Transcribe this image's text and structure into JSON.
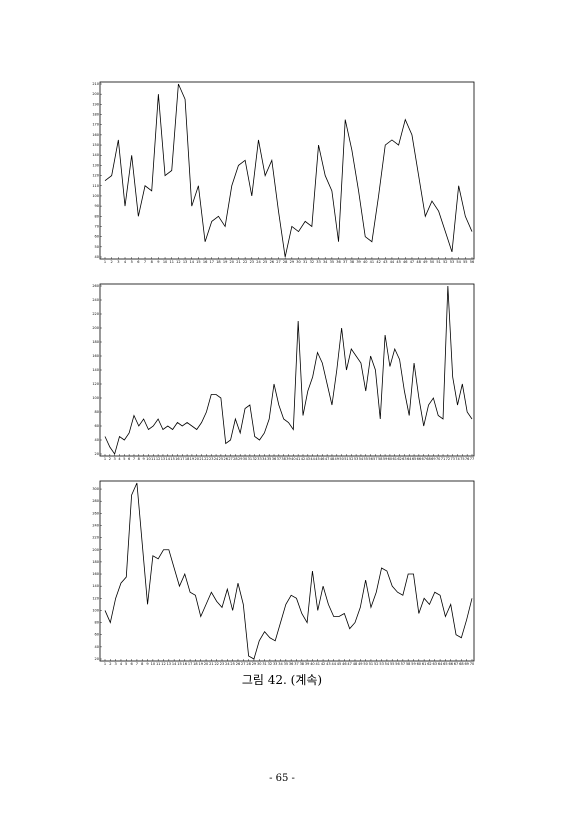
{
  "chart_data": [
    {
      "type": "line",
      "color": "#000000",
      "x": [
        1,
        2,
        3,
        4,
        5,
        6,
        7,
        8,
        9,
        10,
        11,
        12,
        13,
        14,
        15,
        16,
        17,
        18,
        19,
        20,
        21,
        22,
        23,
        24,
        25,
        26,
        27,
        28,
        29,
        30,
        31,
        32,
        33,
        34,
        35,
        36,
        37,
        38,
        39,
        40,
        41,
        42,
        43,
        44,
        45,
        46,
        47,
        48,
        49,
        50,
        51,
        52,
        53,
        54,
        55,
        56
      ],
      "values": [
        115,
        120,
        155,
        90,
        140,
        80,
        110,
        105,
        200,
        120,
        125,
        210,
        195,
        90,
        110,
        55,
        75,
        80,
        70,
        110,
        130,
        135,
        100,
        155,
        120,
        135,
        85,
        40,
        70,
        65,
        75,
        70,
        150,
        120,
        105,
        55,
        175,
        145,
        105,
        60,
        55,
        100,
        150,
        155,
        150,
        175,
        160,
        120,
        80,
        95,
        85,
        65,
        45,
        110,
        80,
        65
      ],
      "xlim": [
        1,
        56
      ],
      "ylim": [
        40,
        210
      ],
      "yticks": [
        40,
        50,
        60,
        70,
        80,
        90,
        100,
        110,
        120,
        130,
        140,
        150,
        160,
        170,
        180,
        190,
        200,
        210
      ]
    },
    {
      "type": "line",
      "color": "#000000",
      "x": [
        1,
        2,
        3,
        4,
        5,
        6,
        7,
        8,
        9,
        10,
        11,
        12,
        13,
        14,
        15,
        16,
        17,
        18,
        19,
        20,
        21,
        22,
        23,
        24,
        25,
        26,
        27,
        28,
        29,
        30,
        31,
        32,
        33,
        34,
        35,
        36,
        37,
        38,
        39,
        40,
        41,
        42,
        43,
        44,
        45,
        46,
        47,
        48,
        49,
        50,
        51,
        52,
        53,
        54,
        55,
        56,
        57,
        58,
        59,
        60,
        61,
        62,
        63,
        64,
        65,
        66,
        67,
        68,
        69,
        70,
        71,
        72,
        73,
        74,
        75,
        76,
        77
      ],
      "values": [
        45,
        30,
        20,
        45,
        40,
        50,
        75,
        60,
        70,
        55,
        60,
        70,
        55,
        60,
        55,
        65,
        60,
        65,
        60,
        55,
        65,
        80,
        105,
        105,
        100,
        35,
        40,
        70,
        50,
        85,
        90,
        45,
        40,
        50,
        70,
        120,
        90,
        70,
        65,
        55,
        210,
        75,
        110,
        130,
        165,
        150,
        120,
        90,
        140,
        200,
        140,
        170,
        160,
        150,
        110,
        160,
        140,
        70,
        190,
        145,
        170,
        155,
        110,
        75,
        150,
        100,
        60,
        90,
        100,
        75,
        70,
        260,
        130,
        90,
        120,
        80,
        70
      ],
      "xlim": [
        1,
        77
      ],
      "ylim": [
        20,
        260
      ],
      "yticks": [
        20,
        40,
        60,
        80,
        100,
        120,
        140,
        160,
        180,
        200,
        220,
        240,
        260
      ]
    },
    {
      "type": "line",
      "color": "#000000",
      "x": [
        1,
        2,
        3,
        4,
        5,
        6,
        7,
        8,
        9,
        10,
        11,
        12,
        13,
        14,
        15,
        16,
        17,
        18,
        19,
        20,
        21,
        22,
        23,
        24,
        25,
        26,
        27,
        28,
        29,
        30,
        31,
        32,
        33,
        34,
        35,
        36,
        37,
        38,
        39,
        40,
        41,
        42,
        43,
        44,
        45,
        46,
        47,
        48,
        49,
        50,
        51,
        52,
        53,
        54,
        55,
        56,
        57,
        58,
        59,
        60,
        61,
        62,
        63,
        64,
        65,
        66,
        67,
        68,
        69,
        70
      ],
      "values": [
        100,
        80,
        120,
        145,
        155,
        290,
        310,
        210,
        110,
        190,
        185,
        200,
        200,
        170,
        140,
        160,
        130,
        125,
        90,
        110,
        130,
        115,
        105,
        135,
        100,
        145,
        110,
        25,
        20,
        50,
        65,
        55,
        50,
        80,
        110,
        125,
        120,
        95,
        80,
        165,
        100,
        140,
        110,
        90,
        90,
        95,
        70,
        80,
        105,
        150,
        105,
        130,
        170,
        165,
        140,
        130,
        125,
        160,
        160,
        95,
        120,
        110,
        130,
        125,
        90,
        110,
        60,
        55,
        85,
        120
      ],
      "xlim": [
        1,
        70
      ],
      "ylim": [
        20,
        310
      ],
      "yticks": [
        20,
        40,
        60,
        80,
        100,
        120,
        140,
        160,
        180,
        200,
        220,
        240,
        260,
        280,
        300
      ]
    }
  ],
  "caption": "그림 42. (계속)",
  "page_number": "- 65 -"
}
